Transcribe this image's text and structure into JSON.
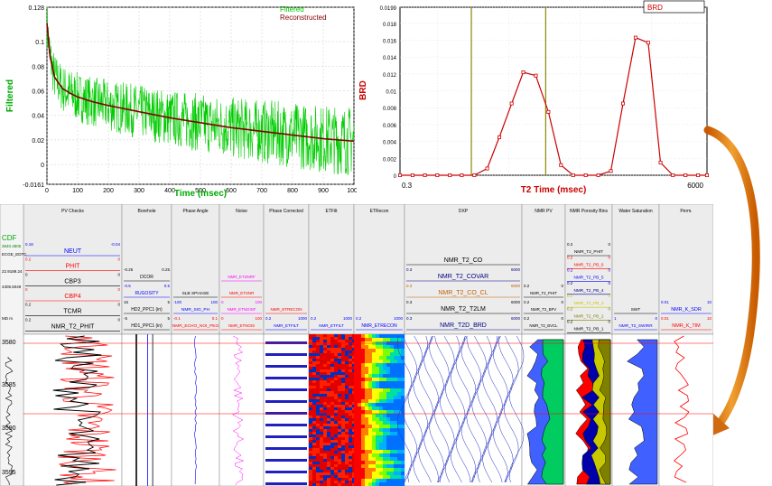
{
  "chart_data": [
    {
      "type": "line",
      "ylabel": "Filtered",
      "xlabel": "Time (msec)",
      "xlim": [
        0,
        1000
      ],
      "ylim": [
        -0.0161,
        0.128
      ],
      "x_ticks": [
        "0",
        "100",
        "200",
        "300",
        "400",
        "500",
        "600",
        "700",
        "800",
        "900",
        "1000"
      ],
      "y_ticks": [
        "0.128",
        "0.1",
        "0.08",
        "0.06",
        "0.04",
        "0.02",
        "0",
        "-0.0161"
      ],
      "series": [
        {
          "name": "Filtered",
          "color": "#00cc00",
          "noisy": true,
          "x": [
            0,
            10,
            25,
            50,
            75,
            100,
            150,
            200,
            300,
            400,
            500,
            600,
            700,
            800,
            900,
            1000
          ],
          "y": [
            0.115,
            0.088,
            0.071,
            0.062,
            0.058,
            0.055,
            0.051,
            0.048,
            0.043,
            0.038,
            0.034,
            0.03,
            0.027,
            0.024,
            0.021,
            0.019
          ]
        },
        {
          "name": "Reconstructed",
          "color": "#800000",
          "x": [
            0,
            10,
            25,
            50,
            75,
            100,
            150,
            200,
            300,
            400,
            500,
            600,
            700,
            800,
            900,
            1000
          ],
          "y": [
            0.115,
            0.088,
            0.071,
            0.062,
            0.058,
            0.055,
            0.051,
            0.048,
            0.043,
            0.038,
            0.034,
            0.03,
            0.027,
            0.024,
            0.021,
            0.019
          ]
        }
      ],
      "legend": "top-right"
    },
    {
      "type": "line",
      "ylabel": "BRD",
      "xlabel": "T2 Time (msec)",
      "x_scale": "log",
      "xlim": [
        0.3,
        6000
      ],
      "ylim": [
        0,
        0.0199
      ],
      "x_ticks": [
        "0.3",
        "6000"
      ],
      "y_ticks": [
        "0.0199",
        "0.018",
        "0.016",
        "0.014",
        "0.012",
        "0.01",
        "0.008",
        "0.006",
        "0.004",
        "0.002",
        "0"
      ],
      "cutoffs": [
        3,
        33
      ],
      "series": [
        {
          "name": "BRD",
          "color": "#cc0000",
          "x": [
            0.3,
            0.45,
            0.67,
            1,
            1.5,
            2.2,
            3.3,
            5,
            7.4,
            11,
            16,
            24,
            36,
            54,
            80,
            120,
            180,
            270,
            400,
            600,
            900,
            1340,
            2000,
            3000,
            4500,
            6000
          ],
          "y": [
            0,
            0,
            0,
            0,
            0,
            0,
            0,
            0.0008,
            0.0045,
            0.0085,
            0.0122,
            0.0118,
            0.0075,
            0.0012,
            0,
            0,
            0,
            0.0005,
            0.0085,
            0.0163,
            0.0157,
            0.0015,
            0,
            0,
            0,
            0
          ]
        }
      ],
      "legend": "top-right"
    }
  ],
  "log": {
    "tracks": [
      {
        "title": "PV Checks",
        "curves": [
          {
            "name": "NEUT",
            "color": "#0000ff",
            "min": "0.18",
            "max": "-0.04"
          },
          {
            "name": "PHIT",
            "color": "#ff0000",
            "min": "0.2",
            "max": "0"
          },
          {
            "name": "CBP3",
            "color": "#000000",
            "min": "0",
            "max": "0"
          },
          {
            "name": "CBP4",
            "color": "#ff0000",
            "min": "0",
            "max": "0"
          },
          {
            "name": "TCMR",
            "color": "#000000",
            "min": "0.2",
            "max": "0"
          },
          {
            "name": "NMR_T2_PHIT",
            "color": "#000000",
            "min": "0.2",
            "max": "0"
          }
        ]
      },
      {
        "title": "Borehole",
        "curves": [
          {
            "name": "DCOR",
            "color": "#000000",
            "min": "-0.25",
            "max": "0.25"
          },
          {
            "name": "RUGOSITY",
            "color": "#0000ff",
            "min": "-0.5",
            "max": "0.5"
          },
          {
            "name": "HD2_PPC1 (in)",
            "color": "#000000",
            "min": "15",
            "max": "5"
          },
          {
            "name": "HD1_PPC1 (in)",
            "color": "#000000",
            "min": "-5",
            "max": "5"
          }
        ]
      },
      {
        "title": "Phase Angle",
        "curves": [
          {
            "name": "SLB SPHASE",
            "color": "#000000",
            "min": "",
            "max": ""
          },
          {
            "name": "NMR_SIG_PH",
            "color": "#0000ff",
            "min": "-100",
            "max": "100"
          },
          {
            "name": "NMR_ECHO_NOI_PEO",
            "color": "#ff0000",
            "min": "-0.1",
            "max": "0.1"
          }
        ]
      },
      {
        "title": "Noise",
        "curves": [
          {
            "name": "NMR_ETSNRF",
            "color": "#ff00ff",
            "min": "",
            "max": ""
          },
          {
            "name": "NMR_ETSNR",
            "color": "#ff0000",
            "min": "",
            "max": ""
          },
          {
            "name": "NMR_ETNOISF",
            "color": "#ff00ff",
            "min": "0",
            "max": "100"
          },
          {
            "name": "NMR_ETNOIS",
            "color": "#ff0000",
            "min": "0",
            "max": "100"
          }
        ]
      },
      {
        "title": "Phase Corrected",
        "curves": [
          {
            "name": "NMR_ETRECON",
            "color": "#ff0000",
            "min": "",
            "max": ""
          },
          {
            "name": "NMR_ETFILT",
            "color": "#0000ff",
            "min": "0.2",
            "max": "1000"
          }
        ]
      },
      {
        "title": "ETFilt",
        "curves": [
          {
            "name": "NMR_ETFILT",
            "color": "#0000ff",
            "min": "0.2",
            "max": "1000"
          }
        ]
      },
      {
        "title": "ETRecon",
        "curves": [
          {
            "name": "NMR_ETRECON",
            "color": "#0000ff",
            "min": "0.2",
            "max": "1000"
          }
        ]
      },
      {
        "title": "DXP",
        "curves": [
          {
            "name": "NMR_T2_CO",
            "color": "#000000",
            "min": "",
            "max": ""
          },
          {
            "name": "NMR_T2_COVAR",
            "color": "#000080",
            "min": "0.3",
            "max": "6000"
          },
          {
            "name": "NMR_T2_CO_CL",
            "color": "#c06000",
            "min": "0.3",
            "max": "6000"
          },
          {
            "name": "NMR_T2_T2LM",
            "color": "#000000",
            "min": "0.3",
            "max": "6000"
          },
          {
            "name": "NMR_T2D_BRD",
            "color": "#000080",
            "min": "0.3",
            "max": "6000"
          }
        ]
      },
      {
        "title": "NMR PV",
        "curves": [
          {
            "name": "NMR_T2_PHIT",
            "color": "#000000",
            "min": "0.2",
            "max": "0"
          },
          {
            "name": "NMR_T2_BFV",
            "color": "#000000",
            "min": "0.2",
            "max": "0"
          },
          {
            "name": "NMR_T2_BVCL",
            "color": "#000000",
            "min": "0.2",
            "max": "0"
          }
        ]
      },
      {
        "title": "NMR Porosity Bins",
        "curves": [
          {
            "name": "NMR_T2_PHIT",
            "color": "#000000",
            "min": "0.2",
            "max": "0"
          },
          {
            "name": "NMR_T2_PB_6",
            "color": "#ff0000",
            "min": "0.2",
            "max": "0"
          },
          {
            "name": "NMR_T2_PB_5",
            "color": "#0000ff",
            "min": "0.2",
            "max": "0"
          },
          {
            "name": "NMR_T2_PB_4",
            "color": "#000080",
            "min": "0.2",
            "max": "0"
          },
          {
            "name": "NMR_T2_PB_3",
            "color": "#c8c800",
            "min": "0.2",
            "max": "0"
          },
          {
            "name": "NMR_T2_PB_2",
            "color": "#808000",
            "min": "0.2",
            "max": "0"
          },
          {
            "name": "NMR_T2_PB_1",
            "color": "#000000",
            "min": "0.2",
            "max": "0"
          }
        ]
      },
      {
        "title": "Water Saturation",
        "curves": [
          {
            "name": "SWT",
            "color": "#000000",
            "min": "",
            "max": ""
          },
          {
            "name": "NMR_T2_SWIRR",
            "color": "#0000ff",
            "min": "1",
            "max": "0"
          }
        ]
      },
      {
        "title": "Perm.",
        "curves": [
          {
            "name": "NMR_K_SDR",
            "color": "#0000ff",
            "min": "0.01",
            "max": "10"
          },
          {
            "name": "NMR_K_TIM",
            "color": "#ff0000",
            "min": "0.01",
            "max": "10"
          }
        ]
      }
    ],
    "depth_labels": [
      "3580",
      "3585",
      "3590",
      "3595"
    ],
    "depth_header": [
      "CDF",
      "3840.4805",
      "ECGE_EDTC",
      "22.9189.24",
      "4305.5049",
      "MD m"
    ]
  }
}
